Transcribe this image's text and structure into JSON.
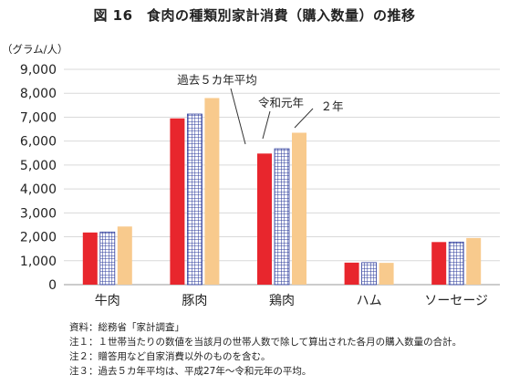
{
  "figure": {
    "title": "図 16　食肉の種類別家計消費（購入数量）の推移"
  },
  "chart_data": {
    "type": "bar",
    "title": "図 16　食肉の種類別家計消費（購入数量）の推移",
    "ylabel": "（グラム/人）",
    "xlabel": "",
    "ylim": [
      0,
      9000
    ],
    "yticks": [
      "0",
      "1,000",
      "2,000",
      "3,000",
      "4,000",
      "5,000",
      "6,000",
      "7,000",
      "8,000",
      "9,000"
    ],
    "categories": [
      "牛肉",
      "豚肉",
      "鶏肉",
      "ハム",
      "ソーセージ"
    ],
    "grid": true,
    "series": [
      {
        "name": "過去５カ年平均",
        "values": [
          2180,
          6950,
          5480,
          920,
          1780
        ],
        "color": "#e8262d",
        "pattern": "solid"
      },
      {
        "name": "令和元年",
        "values": [
          2200,
          7130,
          5680,
          920,
          1780
        ],
        "color": "#2e3c9c",
        "pattern": "grid"
      },
      {
        "name": "２年",
        "values": [
          2430,
          7800,
          6350,
          910,
          1950
        ],
        "color": "#f8ca8d",
        "pattern": "solid"
      }
    ],
    "annotations": [
      "過去５カ年平均",
      "令和元年",
      "２年"
    ]
  },
  "notes": [
    "資料：総務省「家計調査」",
    "注１：１世帯当たりの数値を当該月の世帯人数で除して算出された各月の購入数量の合計。",
    "注２：贈答用など自家消費以外のものを含む。",
    "注３：過去５カ年平均は、平成27年～令和元年の平均。"
  ]
}
